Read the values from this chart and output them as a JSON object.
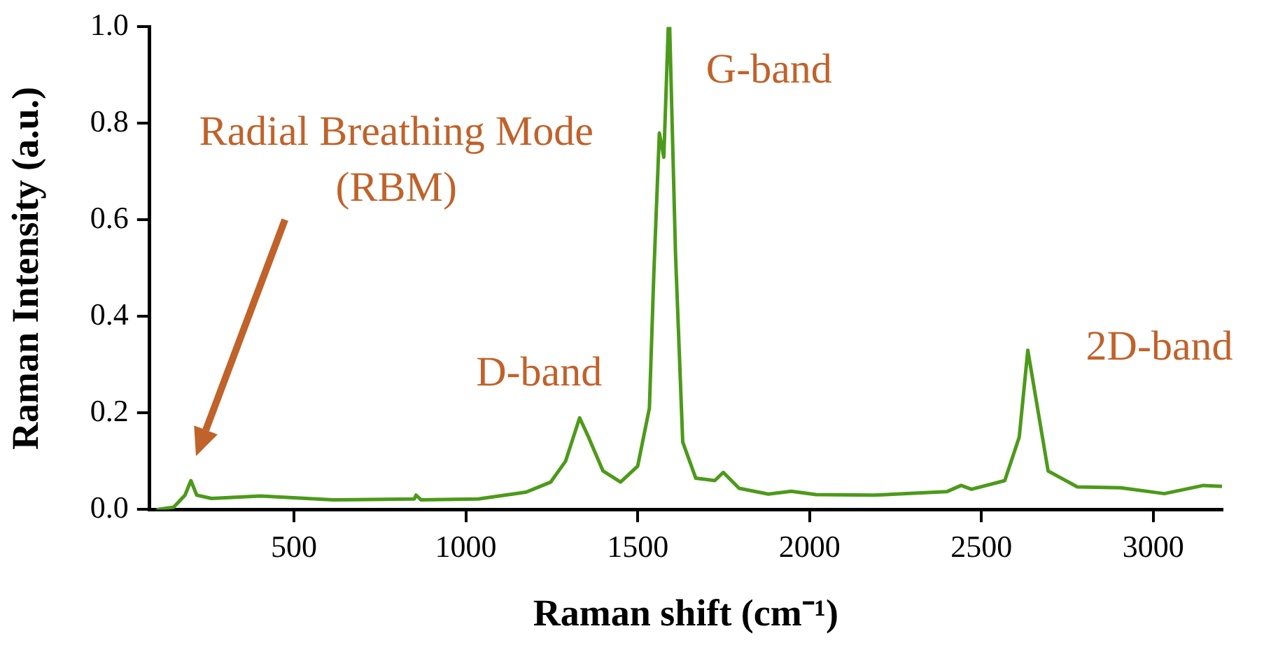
{
  "chart_data": {
    "type": "line",
    "xlabel": "Raman shift (cm⁻¹)",
    "ylabel": "Raman Intensity (a.u.)",
    "xlim": [
      80,
      3200
    ],
    "xticks": [
      500,
      1000,
      1500,
      2000,
      2500,
      3000
    ],
    "ylim": [
      0,
      1
    ],
    "yticks": [
      {
        "value": 0,
        "label": "0.0"
      },
      {
        "value": 0.2,
        "label": "0.2"
      },
      {
        "value": 0.4,
        "label": "0.4"
      },
      {
        "value": 0.6,
        "label": "0.6"
      },
      {
        "value": 0.8,
        "label": "0.8"
      },
      {
        "value": 1,
        "label": "1.0"
      }
    ],
    "grid": false,
    "legend": false,
    "marker": "none",
    "line_style": "solid",
    "series": [
      {
        "color": "#4c9a1a",
        "x": [
          100,
          150,
          183,
          200,
          217,
          260,
          403,
          614,
          850,
          855,
          870,
          1036,
          1175,
          1247,
          1290,
          1331,
          1357,
          1399,
          1450,
          1500,
          1534,
          1547,
          1563,
          1576,
          1589,
          1593,
          1610,
          1631,
          1669,
          1724,
          1749,
          1795,
          1880,
          1947,
          2019,
          2188,
          2399,
          2441,
          2471,
          2568,
          2610,
          2635,
          2661,
          2694,
          2779,
          2905,
          3032,
          3146,
          3200
        ],
        "values": [
          0.0,
          0.005,
          0.03,
          0.06,
          0.03,
          0.023,
          0.028,
          0.02,
          0.022,
          0.03,
          0.02,
          0.022,
          0.036,
          0.057,
          0.1,
          0.19,
          0.15,
          0.08,
          0.057,
          0.09,
          0.21,
          0.49,
          0.78,
          0.73,
          1.0,
          1.0,
          0.53,
          0.14,
          0.065,
          0.06,
          0.077,
          0.044,
          0.032,
          0.038,
          0.031,
          0.03,
          0.037,
          0.05,
          0.042,
          0.06,
          0.15,
          0.33,
          0.22,
          0.08,
          0.047,
          0.045,
          0.033,
          0.05,
          0.048
        ]
      }
    ],
    "annotations": [
      "Radial Breathing Mode (RBM)",
      {
        "text": "D-band",
        "x": 1331,
        "y": 0.19
      },
      {
        "text": "G-band",
        "x": 1593,
        "y": 1.0
      },
      {
        "text": "2D-band",
        "x": 2635,
        "y": 0.33
      }
    ]
  }
}
